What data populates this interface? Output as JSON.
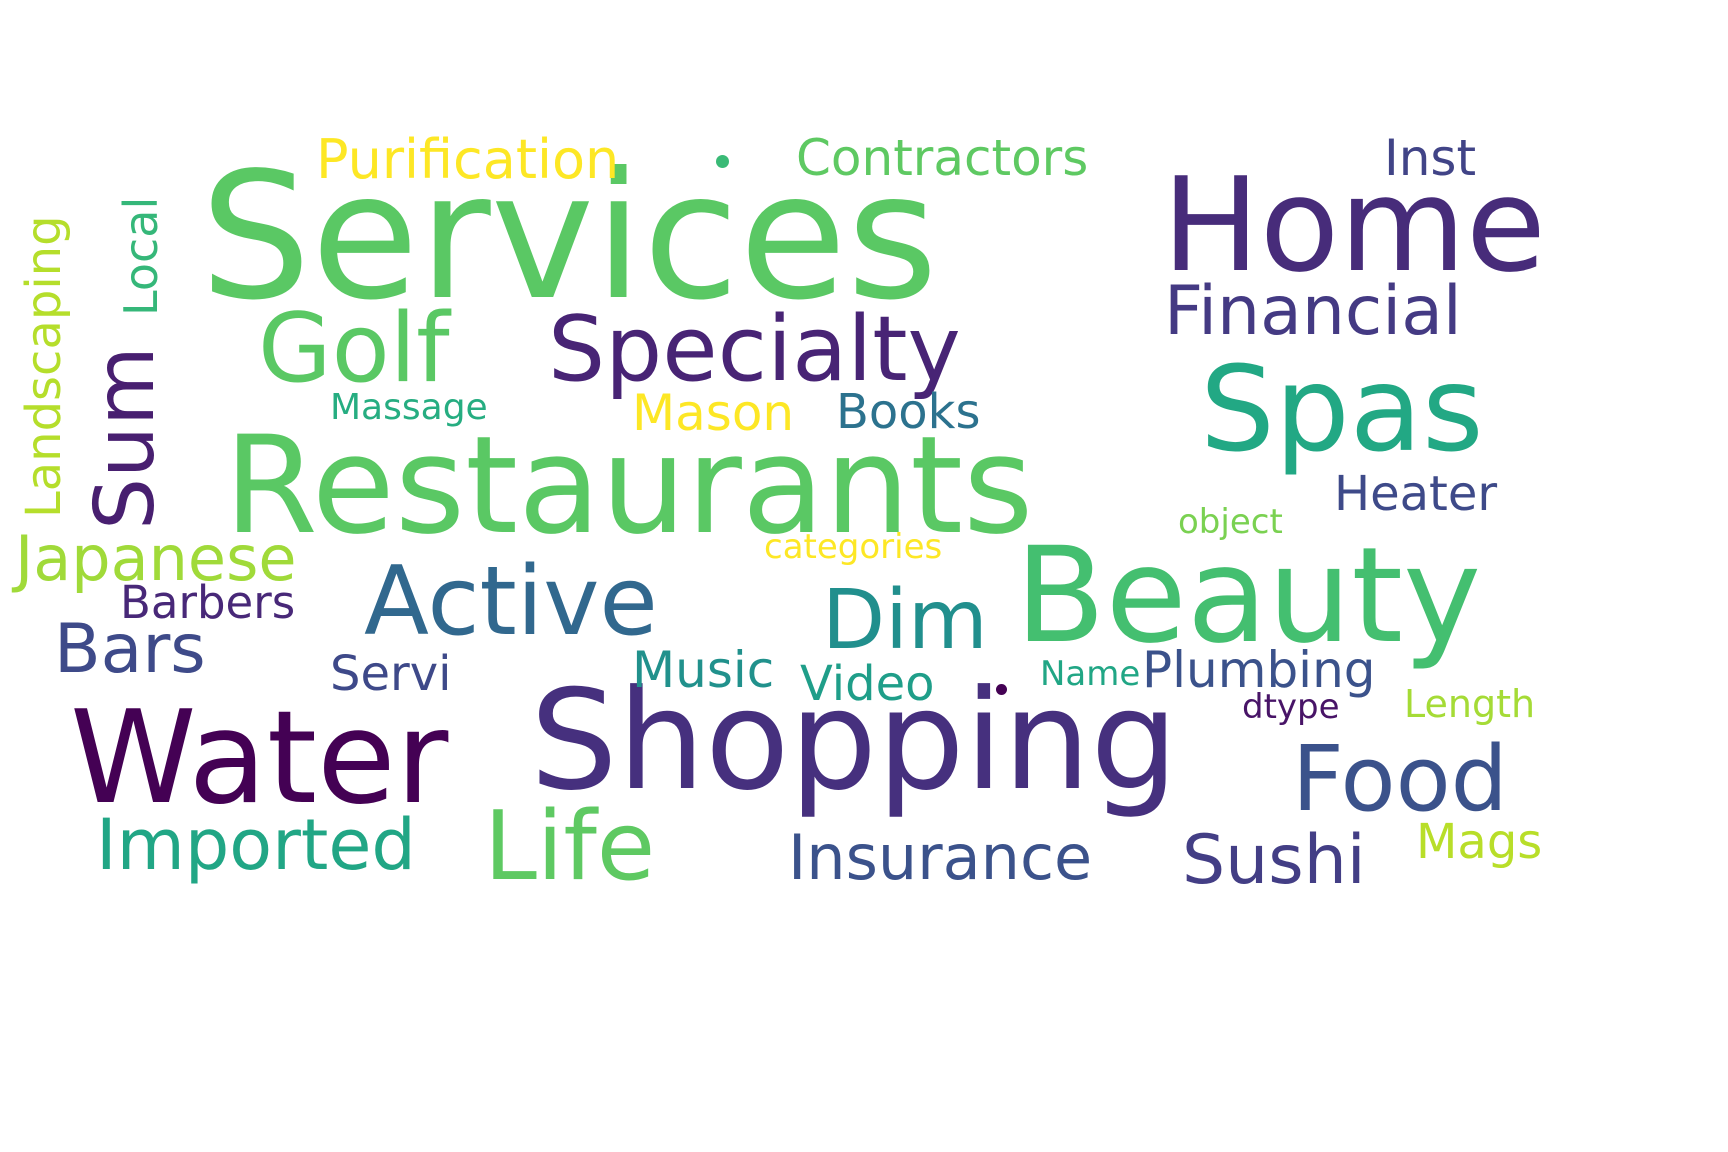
{
  "words": {
    "services": {
      "text": "Services",
      "color": "#5ac864"
    },
    "home": {
      "text": "Home",
      "color": "#472c7a"
    },
    "restaurants": {
      "text": "Restaurants",
      "color": "#5ac864"
    },
    "water": {
      "text": "Water",
      "color": "#440154"
    },
    "shopping": {
      "text": "Shopping",
      "color": "#46307e"
    },
    "beauty": {
      "text": "Beauty",
      "color": "#44bf70"
    },
    "spas": {
      "text": "Spas",
      "color": "#22a884"
    },
    "golf": {
      "text": "Golf",
      "color": "#5ac864"
    },
    "specialty": {
      "text": "Specialty",
      "color": "#482475"
    },
    "active": {
      "text": "Active",
      "color": "#31688e"
    },
    "life": {
      "text": "Life",
      "color": "#5ec962"
    },
    "food": {
      "text": "Food",
      "color": "#3b528b"
    },
    "dim": {
      "text": "Dim",
      "color": "#218f8d"
    },
    "sum": {
      "text": "Sum",
      "color": "#481f70"
    },
    "imported": {
      "text": "Imported",
      "color": "#21a685"
    },
    "insurance": {
      "text": "Insurance",
      "color": "#3b528b"
    },
    "sushi": {
      "text": "Sushi",
      "color": "#433e85"
    },
    "financial": {
      "text": "Financial",
      "color": "#443a83"
    },
    "japanese": {
      "text": "Japanese",
      "color": "#a0da39"
    },
    "bars": {
      "text": "Bars",
      "color": "#3e4a89"
    },
    "contractors": {
      "text": "Contractors",
      "color": "#5ec962"
    },
    "purification": {
      "text": "Purification",
      "color": "#fde725"
    },
    "inst": {
      "text": "Inst",
      "color": "#414487"
    },
    "heater": {
      "text": "Heater",
      "color": "#3e4a89"
    },
    "books": {
      "text": "Books",
      "color": "#2c728e"
    },
    "mason": {
      "text": "Mason",
      "color": "#fde725"
    },
    "music": {
      "text": "Music",
      "color": "#21918c"
    },
    "video": {
      "text": "Video",
      "color": "#1f9e89"
    },
    "plumbing": {
      "text": "Plumbing",
      "color": "#3b528b"
    },
    "barbers": {
      "text": "Barbers",
      "color": "#482878"
    },
    "servi": {
      "text": "Servi",
      "color": "#3e4989"
    },
    "landscaping": {
      "text": "Landscaping",
      "color": "#b5de2b"
    },
    "local": {
      "text": "Local",
      "color": "#35b779"
    },
    "massage": {
      "text": "Massage",
      "color": "#26ad81"
    },
    "categories": {
      "text": "categories",
      "color": "#fde725"
    },
    "object": {
      "text": "object",
      "color": "#7ad151"
    },
    "name": {
      "text": "Name",
      "color": "#21a685"
    },
    "dtype": {
      "text": "dtype",
      "color": "#481467"
    },
    "length": {
      "text": "Length",
      "color": "#a5db36"
    },
    "mags": {
      "text": "Mags",
      "color": "#b8de29"
    }
  },
  "dots": {
    "purification_dot": {
      "color": "#3aba76"
    },
    "video_dot": {
      "color": "#440154"
    }
  }
}
